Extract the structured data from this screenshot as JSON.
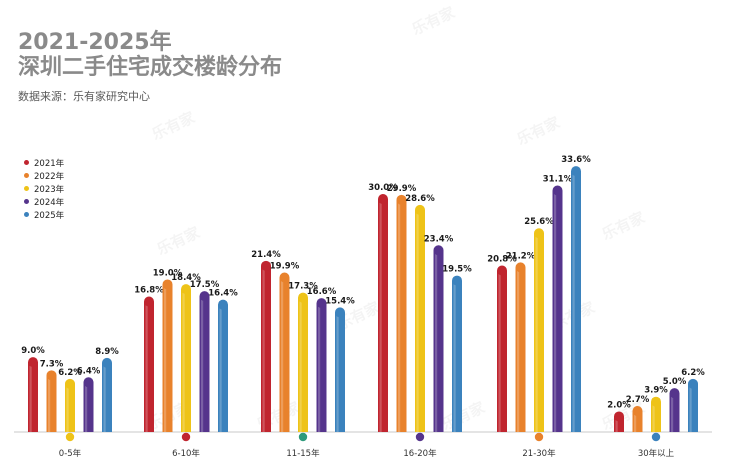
{
  "header": {
    "title_line1": "2021-2025年",
    "title_line2": "深圳二手住宅成交楼龄分布",
    "source": "数据来源：乐有家研究中心"
  },
  "watermark_text": "乐有家",
  "colors": {
    "title": "#8a8a8a",
    "axis": "#c9c9c9",
    "series": [
      "#c0252f",
      "#e8822c",
      "#eec318",
      "#55348c",
      "#3b82bd"
    ]
  },
  "chart_data": {
    "type": "bar",
    "title": "2021-2025年深圳二手住宅成交楼龄分布",
    "categories": [
      "0-5年",
      "6-10年",
      "11-15年",
      "16-20年",
      "21-30年",
      "30年以上"
    ],
    "category_marker_series": [
      2,
      0,
      null,
      3,
      1,
      4
    ],
    "category_marker_extra_color": "#2e9a7c",
    "series": [
      {
        "name": "2021年",
        "values": [
          9.0,
          16.8,
          21.4,
          30.0,
          20.8,
          2.0
        ]
      },
      {
        "name": "2022年",
        "values": [
          7.3,
          19.0,
          19.9,
          29.9,
          21.2,
          2.7
        ]
      },
      {
        "name": "2023年",
        "values": [
          6.2,
          18.4,
          17.3,
          28.6,
          25.6,
          3.9
        ]
      },
      {
        "name": "2024年",
        "values": [
          6.4,
          17.5,
          16.6,
          23.4,
          31.1,
          5.0
        ]
      },
      {
        "name": "2025年",
        "values": [
          8.9,
          16.4,
          15.4,
          19.5,
          33.6,
          6.2
        ]
      }
    ],
    "value_suffix": "%",
    "ylim": [
      0,
      34
    ],
    "legend_position": "top-left",
    "grid": false
  }
}
